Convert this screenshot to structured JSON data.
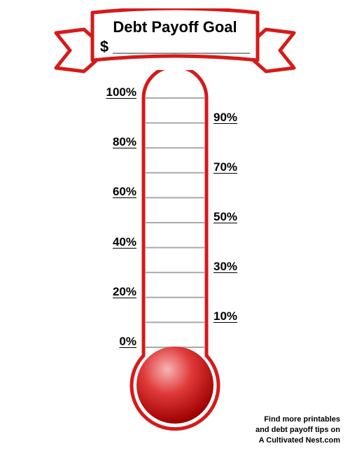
{
  "banner": {
    "title": "Debt Payoff Goal",
    "amount_prefix": "$",
    "amount_line": "________________",
    "stroke": "#d61a1a",
    "fill": "#ffffff"
  },
  "thermometer": {
    "stroke": "#d61a1a",
    "tube_fill": "#ffffff",
    "bulb_gradient_top": "#f4a0a0",
    "bulb_gradient_bottom": "#b20000",
    "tick_color": "#a9a9a9",
    "tube_width": 90,
    "stroke_width": 5,
    "bulb_radius": 62,
    "tick_area_top": 140,
    "tick_area_bottom": 496,
    "ticks": [
      {
        "pct": "0%",
        "side": "left"
      },
      {
        "pct": "10%",
        "side": "right"
      },
      {
        "pct": "20%",
        "side": "left"
      },
      {
        "pct": "30%",
        "side": "right"
      },
      {
        "pct": "40%",
        "side": "left"
      },
      {
        "pct": "50%",
        "side": "right"
      },
      {
        "pct": "60%",
        "side": "left"
      },
      {
        "pct": "70%",
        "side": "right"
      },
      {
        "pct": "80%",
        "side": "left"
      },
      {
        "pct": "90%",
        "side": "right"
      },
      {
        "pct": "100%",
        "side": "left"
      }
    ]
  },
  "footer": {
    "line1": "Find more printables",
    "line2": "and debt payoff tips on",
    "line3": "A Cultivated Nest.com"
  }
}
